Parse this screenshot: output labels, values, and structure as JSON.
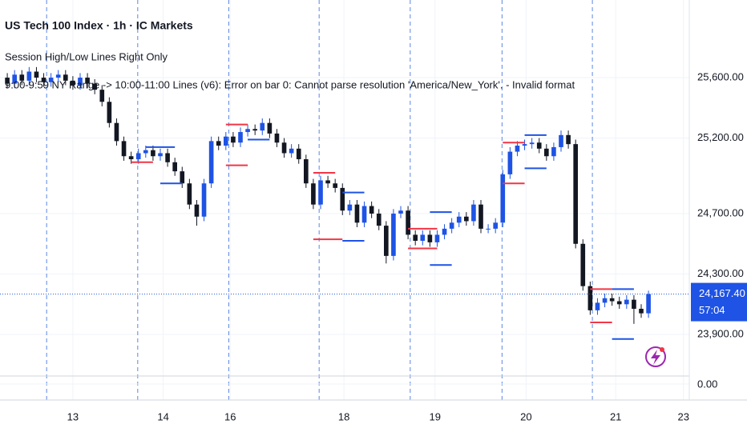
{
  "chart_data": {
    "type": "candlestick",
    "title": "US Tech 100 Index · 1h · IC Markets",
    "indicator_1": "Session High/Low Lines Right Only",
    "indicator_2": "9:00-9:59 NY Range -> 10:00-11:00 Lines (v6): Error on bar 0: Cannot parse resolution 'America/New_York'. - Invalid format",
    "up_color": "#1e53e5",
    "down_color": "#131722",
    "ylim": [
      23625,
      26114
    ],
    "yticks": [
      {
        "value": 25600,
        "label": "25,600.00"
      },
      {
        "value": 25200,
        "label": "25,200.00"
      },
      {
        "value": 24700,
        "label": "24,700.00"
      },
      {
        "value": 24300,
        "label": "24,300.00"
      },
      {
        "value": 23900,
        "label": "23,900.00"
      }
    ],
    "xlim": [
      0,
      94.6
    ],
    "xticks": [
      {
        "value": 10,
        "label": "13"
      },
      {
        "value": 22.4,
        "label": "14"
      },
      {
        "value": 31.6,
        "label": "16"
      },
      {
        "value": 47.2,
        "label": "18"
      },
      {
        "value": 59.7,
        "label": "19"
      },
      {
        "value": 72.2,
        "label": "20"
      },
      {
        "value": 84.5,
        "label": "21"
      },
      {
        "value": 93.8,
        "label": "23"
      }
    ],
    "grid": true,
    "session_lines": [
      6.4,
      18.9,
      31.4,
      43.8,
      56.3,
      68.9,
      81.3
    ],
    "candles": [
      [
        25600,
        25630,
        25530,
        25560
      ],
      [
        25560,
        25650,
        25530,
        25620
      ],
      [
        25620,
        25650,
        25550,
        25580
      ],
      [
        25580,
        25670,
        25550,
        25640
      ],
      [
        25640,
        25670,
        25570,
        25600
      ],
      [
        25600,
        25630,
        25540,
        25570
      ],
      [
        25570,
        25630,
        25540,
        25600
      ],
      [
        25600,
        25650,
        25570,
        25620
      ],
      [
        25620,
        25650,
        25550,
        25580
      ],
      [
        25580,
        25610,
        25520,
        25550
      ],
      [
        25550,
        25630,
        25520,
        25600
      ],
      [
        25600,
        25630,
        25530,
        25560
      ],
      [
        25560,
        25590,
        25490,
        25520
      ],
      [
        25520,
        25550,
        25410,
        25440
      ],
      [
        25440,
        25470,
        25270,
        25300
      ],
      [
        25300,
        25330,
        25150,
        25180
      ],
      [
        25180,
        25210,
        25050,
        25080
      ],
      [
        25080,
        25110,
        25030,
        25060
      ],
      [
        25060,
        25130,
        25030,
        25100
      ],
      [
        25100,
        25150,
        25070,
        25120
      ],
      [
        25120,
        25150,
        25050,
        25080
      ],
      [
        25080,
        25130,
        25050,
        25100
      ],
      [
        25100,
        25130,
        25010,
        25040
      ],
      [
        25040,
        25070,
        24950,
        24980
      ],
      [
        24980,
        25010,
        24870,
        24900
      ],
      [
        24900,
        24930,
        24730,
        24760
      ],
      [
        24760,
        24790,
        24620,
        24680
      ],
      [
        24680,
        24930,
        24650,
        24900
      ],
      [
        24900,
        25210,
        24870,
        25180
      ],
      [
        25180,
        25210,
        25120,
        25150
      ],
      [
        25150,
        25240,
        25120,
        25210
      ],
      [
        25210,
        25240,
        25140,
        25170
      ],
      [
        25170,
        25270,
        25140,
        25240
      ],
      [
        25240,
        25290,
        25210,
        25260
      ],
      [
        25260,
        25290,
        25220,
        25250
      ],
      [
        25250,
        25330,
        25220,
        25300
      ],
      [
        25300,
        25330,
        25200,
        25230
      ],
      [
        25230,
        25260,
        25140,
        25170
      ],
      [
        25170,
        25200,
        25070,
        25100
      ],
      [
        25100,
        25160,
        25070,
        25130
      ],
      [
        25130,
        25160,
        25030,
        25060
      ],
      [
        25060,
        25090,
        24870,
        24900
      ],
      [
        24900,
        24930,
        24730,
        24760
      ],
      [
        24760,
        24950,
        24730,
        24920
      ],
      [
        24920,
        24950,
        24870,
        24900
      ],
      [
        24900,
        24930,
        24840,
        24870
      ],
      [
        24870,
        24900,
        24690,
        24720
      ],
      [
        24720,
        24790,
        24690,
        24760
      ],
      [
        24760,
        24790,
        24610,
        24640
      ],
      [
        24640,
        24780,
        24610,
        24750
      ],
      [
        24750,
        24780,
        24670,
        24700
      ],
      [
        24700,
        24730,
        24590,
        24620
      ],
      [
        24620,
        24650,
        24370,
        24420
      ],
      [
        24420,
        24730,
        24390,
        24700
      ],
      [
        24700,
        24750,
        24670,
        24720
      ],
      [
        24720,
        24750,
        24530,
        24560
      ],
      [
        24560,
        24590,
        24490,
        24520
      ],
      [
        24520,
        24590,
        24490,
        24560
      ],
      [
        24560,
        24590,
        24480,
        24510
      ],
      [
        24510,
        24590,
        24480,
        24560
      ],
      [
        24560,
        24630,
        24530,
        24600
      ],
      [
        24600,
        24670,
        24570,
        24640
      ],
      [
        24640,
        24710,
        24610,
        24680
      ],
      [
        24680,
        24710,
        24620,
        24650
      ],
      [
        24650,
        24790,
        24620,
        24760
      ],
      [
        24760,
        24790,
        24570,
        24600
      ],
      [
        24600,
        24630,
        24570,
        24600
      ],
      [
        24600,
        24670,
        24570,
        24640
      ],
      [
        24640,
        24990,
        24610,
        24960
      ],
      [
        24960,
        25140,
        24930,
        25110
      ],
      [
        25110,
        25180,
        25080,
        25150
      ],
      [
        25150,
        25190,
        25120,
        25160
      ],
      [
        25160,
        25200,
        25130,
        25170
      ],
      [
        25170,
        25200,
        25100,
        25130
      ],
      [
        25130,
        25160,
        25050,
        25080
      ],
      [
        25080,
        25170,
        25050,
        25140
      ],
      [
        25140,
        25250,
        25110,
        25220
      ],
      [
        25220,
        25250,
        25130,
        25160
      ],
      [
        25160,
        25190,
        24470,
        24500
      ],
      [
        24500,
        24530,
        24190,
        24220
      ],
      [
        24220,
        24250,
        24030,
        24060
      ],
      [
        24060,
        24140,
        24030,
        24110
      ],
      [
        24110,
        24170,
        24080,
        24140
      ],
      [
        24140,
        24170,
        24090,
        24120
      ],
      [
        24120,
        24150,
        24070,
        24100
      ],
      [
        24100,
        24160,
        24070,
        24130
      ],
      [
        24130,
        24160,
        23970,
        24070
      ],
      [
        24070,
        24100,
        24010,
        24040
      ],
      [
        24040,
        24190,
        24010,
        24167.4
      ]
    ],
    "range_lines": [
      {
        "x": [
          18,
          21
        ],
        "value": 25040,
        "color": "#f23645"
      },
      {
        "x": [
          20,
          24
        ],
        "value": 25140,
        "color": "#1e53e5"
      },
      {
        "x": [
          22,
          25
        ],
        "value": 24900,
        "color": "#1e53e5"
      },
      {
        "x": [
          31,
          34
        ],
        "value": 25290,
        "color": "#f23645"
      },
      {
        "x": [
          34,
          37
        ],
        "value": 25190,
        "color": "#1e53e5"
      },
      {
        "x": [
          31,
          34
        ],
        "value": 25020,
        "color": "#f23645"
      },
      {
        "x": [
          43,
          46
        ],
        "value": 24970,
        "color": "#f23645"
      },
      {
        "x": [
          47,
          50
        ],
        "value": 24840,
        "color": "#1e53e5"
      },
      {
        "x": [
          43,
          47
        ],
        "value": 24530,
        "color": "#f23645"
      },
      {
        "x": [
          47,
          50
        ],
        "value": 24520,
        "color": "#1e53e5"
      },
      {
        "x": [
          56,
          60
        ],
        "value": 24600,
        "color": "#f23645"
      },
      {
        "x": [
          56,
          60
        ],
        "value": 24470,
        "color": "#f23645"
      },
      {
        "x": [
          59,
          62
        ],
        "value": 24360,
        "color": "#1e53e5"
      },
      {
        "x": [
          59,
          62
        ],
        "value": 24710,
        "color": "#1e53e5"
      },
      {
        "x": [
          69,
          72
        ],
        "value": 25170,
        "color": "#f23645"
      },
      {
        "x": [
          72,
          75
        ],
        "value": 25220,
        "color": "#1e53e5"
      },
      {
        "x": [
          69,
          72
        ],
        "value": 24900,
        "color": "#f23645"
      },
      {
        "x": [
          72,
          75
        ],
        "value": 25000,
        "color": "#1e53e5"
      },
      {
        "x": [
          81,
          84
        ],
        "value": 24200,
        "color": "#f23645"
      },
      {
        "x": [
          84,
          87
        ],
        "value": 24200,
        "color": "#1e53e5"
      },
      {
        "x": [
          81,
          84
        ],
        "value": 23980,
        "color": "#f23645"
      },
      {
        "x": [
          84,
          87
        ],
        "value": 23870,
        "color": "#1e53e5"
      }
    ],
    "last_price": {
      "value": 24167.4,
      "label": "24,167.40"
    },
    "countdown": "57:04",
    "pane2": {
      "yticks": [
        {
          "value": 0,
          "label": "0.00"
        }
      ]
    }
  }
}
